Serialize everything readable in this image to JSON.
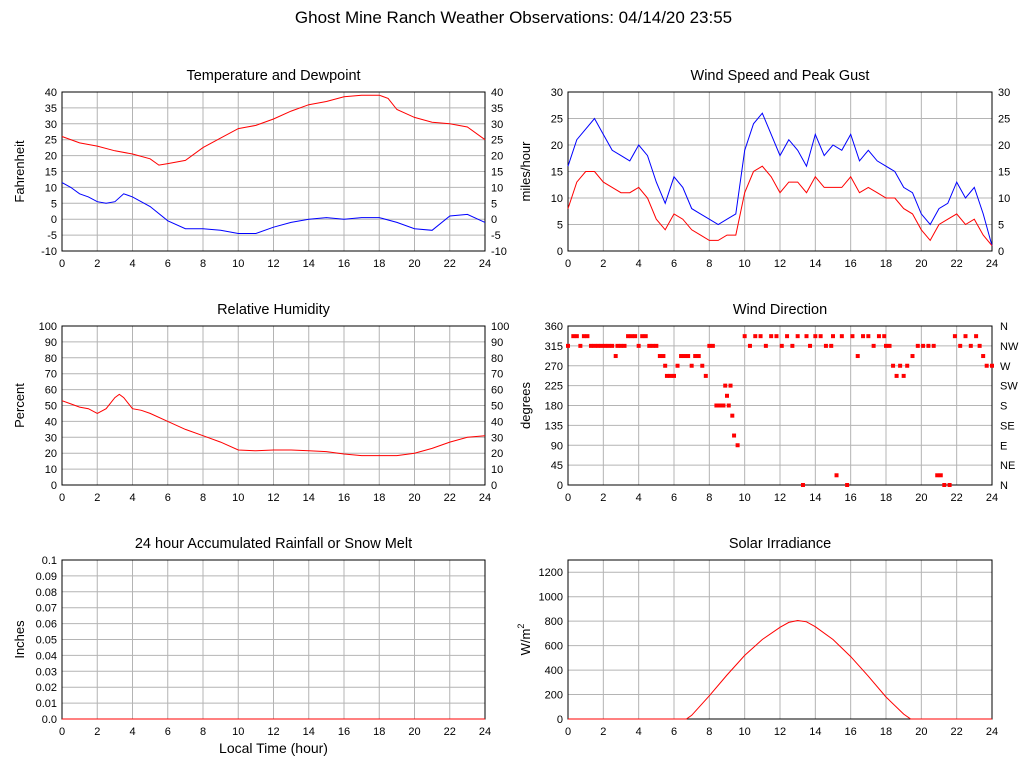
{
  "title": "Ghost Mine Ranch Weather Observations: 04/14/20 23:55",
  "x_axis_label": "Local Time (hour)",
  "colors": {
    "red": "#ff0000",
    "blue": "#0000ff",
    "grid": "#b4b4b4"
  },
  "chart_data": [
    {
      "id": "temp",
      "type": "line",
      "title": "Temperature and Dewpoint",
      "ylabel": "Fahrenheit",
      "xlim": [
        0,
        24
      ],
      "ylim": [
        -10,
        40
      ],
      "yticks": [
        -10,
        -5,
        0,
        5,
        10,
        15,
        20,
        25,
        30,
        35,
        40
      ],
      "ytick_labels": [
        "-10",
        "-5",
        "0",
        "5",
        "10",
        "15",
        "20",
        "25",
        "30",
        "35",
        "40"
      ],
      "right_ticks": true,
      "grid": true,
      "series": [
        {
          "color": "#ff0000",
          "x": [
            0,
            1,
            2,
            3,
            4,
            5,
            5.5,
            6,
            7,
            8,
            9,
            10,
            11,
            12,
            13,
            14,
            15,
            16,
            17,
            18,
            18.5,
            19,
            20,
            21,
            22,
            23,
            24
          ],
          "y": [
            26,
            24,
            23,
            21.5,
            20.5,
            19,
            17,
            17.5,
            18.5,
            22.5,
            25.5,
            28.5,
            29.5,
            31.5,
            34,
            36,
            37,
            38.5,
            39,
            39,
            38,
            34.5,
            32,
            30.5,
            30,
            29,
            25
          ]
        },
        {
          "color": "#0000ff",
          "x": [
            0,
            0.5,
            1,
            1.5,
            2,
            2.5,
            3,
            3.5,
            4,
            5,
            6,
            7,
            8,
            9,
            10,
            11,
            12,
            13,
            14,
            15,
            16,
            17,
            18,
            19,
            20,
            21,
            22,
            23,
            24
          ],
          "y": [
            11.5,
            10,
            8,
            7,
            5.5,
            5,
            5.5,
            8,
            7,
            4,
            -0.5,
            -3,
            -3,
            -3.5,
            -4.5,
            -4.5,
            -2.5,
            -1,
            0,
            0.5,
            0,
            0.5,
            0.5,
            -1,
            -3,
            -3.5,
            1,
            1.5,
            -1
          ]
        }
      ]
    },
    {
      "id": "wind",
      "type": "line",
      "title": "Wind Speed and Peak Gust",
      "ylabel": "miles/hour",
      "xlim": [
        0,
        24
      ],
      "ylim": [
        0,
        30
      ],
      "yticks": [
        0,
        5,
        10,
        15,
        20,
        25,
        30
      ],
      "ytick_labels": [
        "0",
        "5",
        "10",
        "15",
        "20",
        "25",
        "30"
      ],
      "right_ticks": true,
      "grid": true,
      "series": [
        {
          "color": "#0000ff",
          "x": [
            0,
            0.5,
            1,
            1.5,
            2,
            2.5,
            3,
            3.5,
            4,
            4.5,
            5,
            5.5,
            6,
            6.5,
            7,
            7.5,
            8,
            8.5,
            9,
            9.5,
            10,
            10.5,
            11,
            11.5,
            12,
            12.5,
            13,
            13.5,
            14,
            14.5,
            15,
            15.5,
            16,
            16.5,
            17,
            17.5,
            18,
            18.5,
            19,
            19.5,
            20,
            20.5,
            21,
            21.5,
            22,
            22.5,
            23,
            23.5,
            24
          ],
          "y": [
            16,
            21,
            23,
            25,
            22,
            19,
            18,
            17,
            20,
            18,
            13,
            9,
            14,
            12,
            8,
            7,
            6,
            5,
            6,
            7,
            19,
            24,
            26,
            22,
            18,
            21,
            19,
            16,
            22,
            18,
            20,
            19,
            22,
            17,
            19,
            17,
            16,
            15,
            12,
            11,
            7,
            5,
            8,
            9,
            13,
            10,
            12,
            7,
            1
          ]
        },
        {
          "color": "#ff0000",
          "x": [
            0,
            0.5,
            1,
            1.5,
            2,
            2.5,
            3,
            3.5,
            4,
            4.5,
            5,
            5.5,
            6,
            6.5,
            7,
            7.5,
            8,
            8.5,
            9,
            9.5,
            10,
            10.5,
            11,
            11.5,
            12,
            12.5,
            13,
            13.5,
            14,
            14.5,
            15,
            15.5,
            16,
            16.5,
            17,
            17.5,
            18,
            18.5,
            19,
            19.5,
            20,
            20.5,
            21,
            21.5,
            22,
            22.5,
            23,
            23.5,
            24
          ],
          "y": [
            8,
            13,
            15,
            15,
            13,
            12,
            11,
            11,
            12,
            10,
            6,
            4,
            7,
            6,
            4,
            3,
            2,
            2,
            3,
            3,
            11,
            15,
            16,
            14,
            11,
            13,
            13,
            11,
            14,
            12,
            12,
            12,
            14,
            11,
            12,
            11,
            10,
            10,
            8,
            7,
            4,
            2,
            5,
            6,
            7,
            5,
            6,
            3,
            1
          ]
        }
      ]
    },
    {
      "id": "rh",
      "type": "line",
      "title": "Relative Humidity",
      "ylabel": "Percent",
      "xlim": [
        0,
        24
      ],
      "ylim": [
        0,
        100
      ],
      "yticks": [
        0,
        10,
        20,
        30,
        40,
        50,
        60,
        70,
        80,
        90,
        100
      ],
      "ytick_labels": [
        "0",
        "10",
        "20",
        "30",
        "40",
        "50",
        "60",
        "70",
        "80",
        "90",
        "100"
      ],
      "right_ticks": true,
      "grid": true,
      "series": [
        {
          "color": "#ff0000",
          "x": [
            0,
            0.5,
            1,
            1.5,
            2,
            2.5,
            3,
            3.25,
            3.5,
            4,
            4.5,
            5,
            6,
            7,
            8,
            9,
            10,
            11,
            12,
            13,
            14,
            15,
            16,
            17,
            18,
            19,
            20,
            21,
            22,
            23,
            24
          ],
          "y": [
            53,
            51,
            49,
            48,
            45,
            48,
            55,
            57,
            55,
            48,
            47,
            45,
            40,
            35,
            31,
            27,
            22,
            21.5,
            22,
            22,
            21.5,
            21,
            19.5,
            18.5,
            18.5,
            18.5,
            20,
            23,
            27,
            30,
            31
          ]
        }
      ]
    },
    {
      "id": "wdir",
      "type": "scatter",
      "title": "Wind Direction",
      "ylabel": "degrees",
      "xlim": [
        0,
        24
      ],
      "ylim": [
        0,
        360
      ],
      "yticks": [
        0,
        45,
        90,
        135,
        180,
        225,
        270,
        315,
        360
      ],
      "ytick_labels": [
        "0",
        "45",
        "90",
        "135",
        "180",
        "225",
        "270",
        "315",
        "360"
      ],
      "right_labels": [
        "N",
        "NE",
        "E",
        "SE",
        "S",
        "SW",
        "W",
        "NW",
        "N"
      ],
      "grid": true,
      "series": [
        {
          "color": "#ff0000",
          "x": [
            0,
            0.3,
            0.5,
            0.7,
            0.9,
            1.1,
            1.3,
            1.5,
            1.7,
            1.9,
            2.1,
            2.3,
            2.5,
            2.7,
            2.8,
            3.0,
            3.2,
            3.4,
            3.6,
            3.8,
            4.0,
            4.2,
            4.4,
            4.6,
            4.8,
            5.0,
            5.2,
            5.4,
            5.5,
            5.6,
            5.8,
            6.0,
            6.2,
            6.4,
            6.6,
            6.8,
            7.0,
            7.2,
            7.4,
            7.6,
            7.8,
            8.0,
            8.2,
            8.4,
            8.6,
            8.8,
            8.9,
            9.0,
            9.1,
            9.2,
            9.3,
            9.4,
            9.6,
            10.0,
            10.3,
            10.6,
            10.9,
            11.2,
            11.5,
            11.8,
            12.1,
            12.4,
            12.7,
            13.0,
            13.3,
            13.5,
            13.7,
            14.0,
            14.3,
            14.6,
            14.9,
            15.0,
            15.2,
            15.5,
            15.8,
            16.1,
            16.4,
            16.7,
            17.0,
            17.3,
            17.6,
            17.9,
            18.0,
            18.2,
            18.4,
            18.6,
            18.8,
            19.0,
            19.2,
            19.5,
            19.8,
            20.1,
            20.4,
            20.7,
            20.9,
            21.1,
            21.3,
            21.6,
            21.9,
            22.2,
            22.5,
            22.8,
            23.1,
            23.3,
            23.5,
            23.7,
            24.0
          ],
          "y": [
            315,
            337,
            337,
            315,
            337,
            337,
            315,
            315,
            315,
            315,
            315,
            315,
            315,
            292,
            315,
            315,
            315,
            337,
            337,
            337,
            315,
            337,
            337,
            315,
            315,
            315,
            292,
            292,
            270,
            247,
            247,
            247,
            270,
            292,
            292,
            292,
            270,
            292,
            292,
            270,
            247,
            315,
            315,
            180,
            180,
            180,
            225,
            202,
            180,
            225,
            157,
            112,
            90,
            337,
            315,
            337,
            337,
            315,
            337,
            337,
            315,
            337,
            315,
            337,
            0,
            337,
            315,
            337,
            337,
            315,
            315,
            337,
            22,
            337,
            0,
            337,
            292,
            337,
            337,
            315,
            337,
            337,
            315,
            315,
            270,
            247,
            270,
            247,
            270,
            292,
            315,
            315,
            315,
            315,
            22,
            22,
            0,
            0,
            337,
            315,
            337,
            315,
            337,
            315,
            292,
            270,
            270
          ]
        }
      ]
    },
    {
      "id": "rain",
      "type": "line",
      "title": "24 hour Accumulated Rainfall or Snow Melt",
      "ylabel": "Inches",
      "xlim": [
        0,
        24
      ],
      "ylim": [
        0,
        0.1
      ],
      "yticks": [
        0,
        0.01,
        0.02,
        0.03,
        0.04,
        0.05,
        0.06,
        0.07,
        0.08,
        0.09,
        0.1
      ],
      "ytick_labels": [
        "0.0",
        "0.01",
        "0.02",
        "0.03",
        "0.04",
        "0.05",
        "0.06",
        "0.07",
        "0.08",
        "0.09",
        "0.1"
      ],
      "grid": true,
      "series": [
        {
          "color": "#ff0000",
          "x": [
            0,
            24
          ],
          "y": [
            0,
            0
          ]
        }
      ]
    },
    {
      "id": "solar",
      "type": "line",
      "title": "Solar Irradiance",
      "ylabel_main": "W/m",
      "ylabel_sup": "2",
      "xlim": [
        0,
        24
      ],
      "ylim": [
        0,
        1300
      ],
      "yticks": [
        0,
        200,
        400,
        600,
        800,
        1000,
        1200
      ],
      "ytick_labels": [
        "0",
        "200",
        "400",
        "600",
        "800",
        "1000",
        "1200"
      ],
      "grid": true,
      "series": [
        {
          "color": "#ff0000",
          "x": [
            0,
            6.7,
            7,
            8,
            9,
            10,
            11,
            12,
            12.5,
            13,
            13.5,
            14,
            15,
            16,
            17,
            18,
            19,
            19.4,
            24
          ],
          "y": [
            0,
            0,
            30,
            190,
            360,
            520,
            650,
            750,
            790,
            805,
            795,
            755,
            650,
            510,
            350,
            180,
            40,
            0,
            0
          ]
        }
      ]
    }
  ],
  "xticks": [
    0,
    2,
    4,
    6,
    8,
    10,
    12,
    14,
    16,
    18,
    20,
    22,
    24
  ],
  "xtick_labels": [
    "0",
    "2",
    "4",
    "6",
    "8",
    "10",
    "12",
    "14",
    "16",
    "18",
    "20",
    "22",
    "24"
  ]
}
